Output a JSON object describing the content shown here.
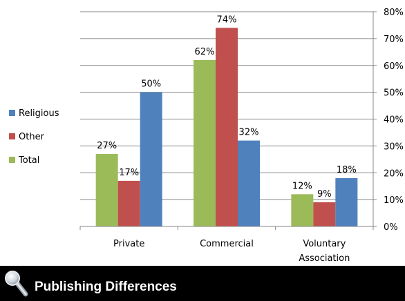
{
  "chart_data": {
    "type": "bar",
    "categories": [
      [
        "Private"
      ],
      [
        "Commercial"
      ],
      [
        "Voluntary",
        "Association"
      ]
    ],
    "series": [
      {
        "name": "Total",
        "values": [
          27,
          62,
          12
        ],
        "labels": [
          "27%",
          "62%",
          "12%"
        ],
        "color": "#9BBB59"
      },
      {
        "name": "Other",
        "values": [
          17,
          74,
          9
        ],
        "labels": [
          "17%",
          "74%",
          "9%"
        ],
        "color": "#C0504D"
      },
      {
        "name": "Religious",
        "values": [
          50,
          32,
          18
        ],
        "labels": [
          "50%",
          "32%",
          "18%"
        ],
        "color": "#4F81BD"
      }
    ],
    "legend_order": [
      "Religious",
      "Other",
      "Total"
    ],
    "legend_position": "left",
    "y_axis_position": "right",
    "ylim": [
      0,
      80
    ],
    "yticks": [
      0,
      10,
      20,
      30,
      40,
      50,
      60,
      70,
      80
    ],
    "ytick_labels": [
      "0%",
      "10%",
      "20%",
      "30%",
      "40%",
      "50%",
      "60%",
      "70%",
      "80%"
    ],
    "grid": true
  },
  "caption": {
    "title": "Publishing Differences",
    "icon": "magnifier-icon"
  }
}
